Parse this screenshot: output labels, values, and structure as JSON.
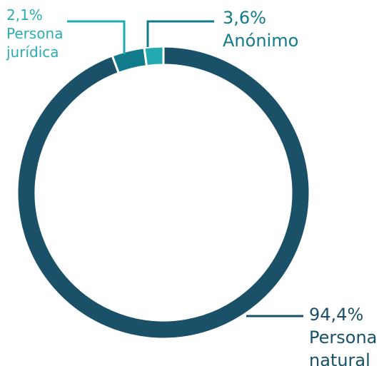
{
  "chart_data": {
    "type": "donut",
    "categories": [
      "Persona natural",
      "Anónimo",
      "Persona jurídica"
    ],
    "values": [
      94.4,
      3.6,
      2.1
    ],
    "value_labels": [
      "94,4%",
      "3,6%",
      "2,1%"
    ],
    "colors": [
      "#1a5068",
      "#117b8b",
      "#22a9b1"
    ]
  }
}
